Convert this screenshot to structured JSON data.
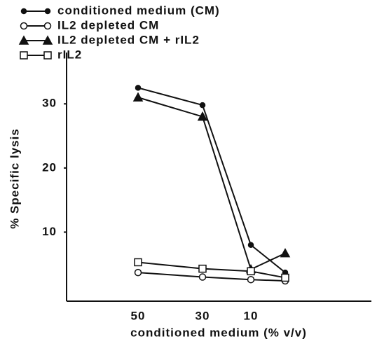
{
  "chart_data": {
    "type": "line",
    "xlabel": "conditioned medium (% v/v)",
    "ylabel": "% Specific lysis",
    "categories": [
      "50",
      "30",
      "10",
      null
    ],
    "series": [
      {
        "name": "conditioned medium (CM)",
        "marker": "filled-circle",
        "color": "#111111",
        "values": [
          32.5,
          29.8,
          8.0,
          3.7
        ]
      },
      {
        "name": "IL2 depleted CM",
        "marker": "open-circle",
        "color": "#111111",
        "values": [
          3.7,
          3.0,
          2.6,
          2.4
        ]
      },
      {
        "name": "IL2 depleted CM + rIL2",
        "marker": "filled-triangle",
        "color": "#111111",
        "values": [
          31.0,
          28.0,
          4.2,
          6.7
        ]
      },
      {
        "name": "rIL2",
        "marker": "open-square",
        "color": "#111111",
        "values": [
          5.3,
          4.3,
          3.9,
          2.9
        ]
      }
    ],
    "ylim": [
      0,
      38
    ],
    "yticks": [
      10,
      20,
      30
    ],
    "legend": "top-left"
  }
}
